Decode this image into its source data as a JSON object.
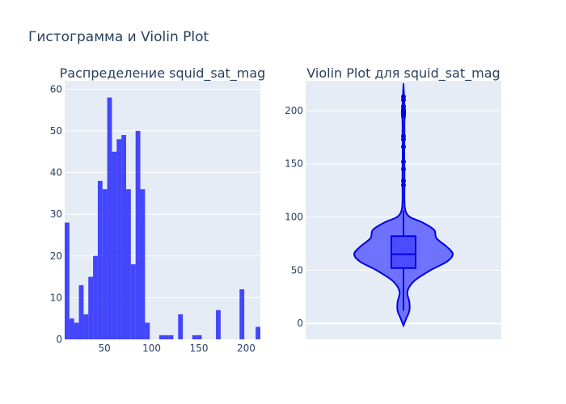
{
  "title": "Гистограмма и Violin Plot",
  "colors": {
    "plot_bg": "#e5ecf6",
    "grid": "#ffffff",
    "bar": "#0000ff",
    "violin_fill": "#6f72ff",
    "violin_line": "#0000e6",
    "box_fill": "#4b4cff",
    "text": "#2a3f5f"
  },
  "chart_data": [
    {
      "type": "bar",
      "title": "Распределение squid_sat_mag",
      "xlabel": "",
      "ylabel": "",
      "xlim": [
        8,
        215
      ],
      "ylim": [
        0,
        62
      ],
      "xticks": [
        50,
        100,
        150,
        200
      ],
      "yticks": [
        0,
        10,
        20,
        30,
        40,
        50,
        60
      ],
      "bin_width": 5,
      "bins": [
        {
          "x0": 8,
          "count": 28
        },
        {
          "x0": 13,
          "count": 5
        },
        {
          "x0": 18,
          "count": 4
        },
        {
          "x0": 23,
          "count": 13
        },
        {
          "x0": 28,
          "count": 6
        },
        {
          "x0": 33,
          "count": 15
        },
        {
          "x0": 38,
          "count": 20
        },
        {
          "x0": 43,
          "count": 38
        },
        {
          "x0": 48,
          "count": 36
        },
        {
          "x0": 53,
          "count": 58
        },
        {
          "x0": 58,
          "count": 45
        },
        {
          "x0": 63,
          "count": 48
        },
        {
          "x0": 68,
          "count": 49
        },
        {
          "x0": 73,
          "count": 36
        },
        {
          "x0": 78,
          "count": 18
        },
        {
          "x0": 83,
          "count": 50
        },
        {
          "x0": 88,
          "count": 36
        },
        {
          "x0": 93,
          "count": 4
        },
        {
          "x0": 108,
          "count": 1
        },
        {
          "x0": 113,
          "count": 1
        },
        {
          "x0": 118,
          "count": 1
        },
        {
          "x0": 128,
          "count": 6
        },
        {
          "x0": 143,
          "count": 1
        },
        {
          "x0": 148,
          "count": 1
        },
        {
          "x0": 168,
          "count": 7
        },
        {
          "x0": 193,
          "count": 12
        },
        {
          "x0": 210,
          "count": 3
        }
      ]
    },
    {
      "type": "violin",
      "title": "Violin Plot для squid_sat_mag",
      "xlabel": "",
      "ylabel": "",
      "ylim": [
        -15,
        228
      ],
      "yticks": [
        0,
        50,
        100,
        150,
        200
      ],
      "box": {
        "q1": 52,
        "median": 65,
        "q3": 82,
        "whisker_low": 12,
        "whisker_high": 106
      },
      "outliers": [
        130,
        134,
        145,
        152,
        166,
        173,
        176,
        195,
        198,
        199,
        200,
        201,
        204,
        210,
        213
      ],
      "density_profile": [
        {
          "y": -2,
          "w": 0
        },
        {
          "y": 5,
          "w": 0.06
        },
        {
          "y": 12,
          "w": 0.12
        },
        {
          "y": 20,
          "w": 0.12
        },
        {
          "y": 30,
          "w": 0.08
        },
        {
          "y": 40,
          "w": 0.22
        },
        {
          "y": 50,
          "w": 0.55
        },
        {
          "y": 58,
          "w": 0.88
        },
        {
          "y": 65,
          "w": 1.0
        },
        {
          "y": 72,
          "w": 0.88
        },
        {
          "y": 80,
          "w": 0.67
        },
        {
          "y": 88,
          "w": 0.62
        },
        {
          "y": 95,
          "w": 0.38
        },
        {
          "y": 100,
          "w": 0.13
        },
        {
          "y": 106,
          "w": 0.04
        },
        {
          "y": 115,
          "w": 0.02
        },
        {
          "y": 130,
          "w": 0.02
        },
        {
          "y": 145,
          "w": 0.02
        },
        {
          "y": 160,
          "w": 0.015
        },
        {
          "y": 175,
          "w": 0.02
        },
        {
          "y": 190,
          "w": 0.02
        },
        {
          "y": 198,
          "w": 0.035
        },
        {
          "y": 205,
          "w": 0.02
        },
        {
          "y": 215,
          "w": 0.01
        },
        {
          "y": 224,
          "w": 0
        }
      ]
    }
  ]
}
